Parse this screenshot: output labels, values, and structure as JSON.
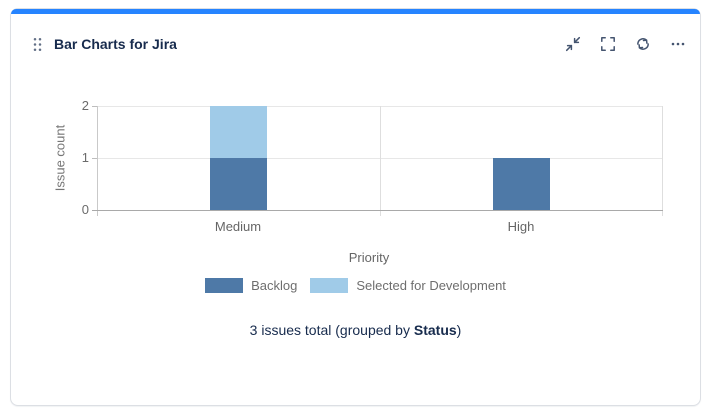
{
  "card": {
    "title": "Bar Charts for Jira",
    "accent_color": "#2684ff",
    "icons": [
      "drag-handle",
      "minimize",
      "fullscreen",
      "refresh",
      "more-options"
    ]
  },
  "chart_data": {
    "type": "bar",
    "stacked": true,
    "categories": [
      "Medium",
      "High"
    ],
    "series": [
      {
        "name": "Backlog",
        "color": "#4e79a7",
        "values": [
          1,
          1
        ]
      },
      {
        "name": "Selected for Development",
        "color": "#a0cbe8",
        "values": [
          1,
          0
        ]
      }
    ],
    "xlabel": "Priority",
    "ylabel": "Issue count",
    "yticks": [
      0,
      1,
      2
    ],
    "ylim": [
      0,
      2
    ],
    "grid": true,
    "legend_position": "bottom"
  },
  "summary": {
    "prefix": "3 issues total (grouped by ",
    "bold": "Status",
    "suffix": ")"
  }
}
